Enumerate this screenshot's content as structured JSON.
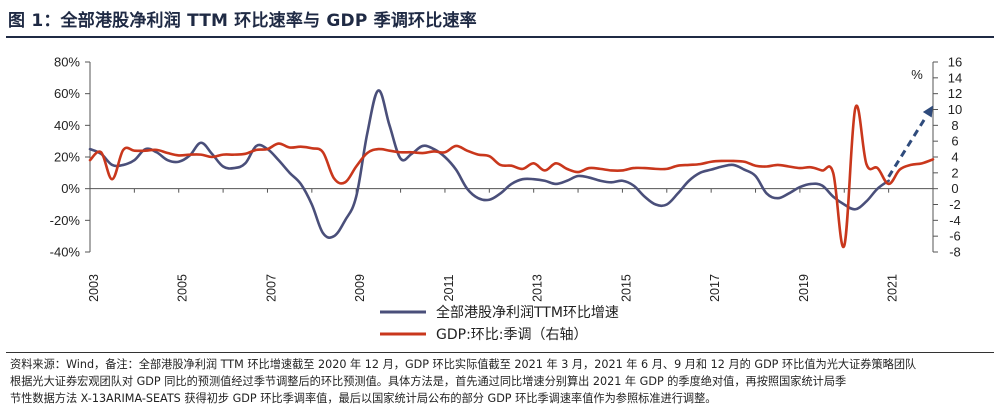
{
  "header": {
    "title": "图 1：全部港股净利润 TTM 环比速率与 GDP 季调环比速率"
  },
  "source": {
    "line1": "资料来源：Wind，备注：全部港股净利润 TTM 环比增速截至 2020 年 12 月，GDP 环比实际值截至 2021 年 3 月，2021 年 6 月、9 月和 12 月的 GDP 环比值为光大证券策略团队",
    "line2": "根据光大证券宏观团队对 GDP 同比的预测值经过季节调整后的环比预测值。具体方法是，首先通过同比增速分别算出 2021 年 GDP 的季度绝对值，再按照国家统计局季",
    "line3": "节性数据方法 X-13ARIMA-SEATS 获得初步 GDP 环比季调率值，最后以国家统计局公布的部分 GDP 环比季调速率值作为参照标准进行调整。"
  },
  "colors": {
    "profit": "#4a4f7a",
    "gdp": "#c9371c",
    "forecast": "#2f4b7c"
  },
  "chart_data": {
    "type": "line",
    "title": "图 1：全部港股净利润 TTM 环比速率与 GDP 季调环比速率",
    "x_range": [
      2003.0,
      2022.0
    ],
    "x_ticks": [
      "2003",
      "2005",
      "2007",
      "2009",
      "2011",
      "2013",
      "2015",
      "2017",
      "2019",
      "2021"
    ],
    "y_left": {
      "min": -40,
      "max": 80,
      "ticks": [
        "80%",
        "60%",
        "40%",
        "20%",
        "0%",
        "-20%",
        "-40%"
      ]
    },
    "y_right": {
      "min": -8,
      "max": 16,
      "unit": "%",
      "ticks": [
        "16",
        "14",
        "12",
        "10",
        "8",
        "6",
        "4",
        "2",
        "0",
        "-2",
        "-4",
        "-6",
        "-8"
      ]
    },
    "series": [
      {
        "name": "全部港股净利润TTM环比增速",
        "axis": "left",
        "x": [
          2003.0,
          2003.25,
          2003.5,
          2003.75,
          2004.0,
          2004.25,
          2004.5,
          2004.75,
          2005.0,
          2005.25,
          2005.5,
          2005.75,
          2006.0,
          2006.25,
          2006.5,
          2006.75,
          2007.0,
          2007.25,
          2007.5,
          2007.75,
          2008.0,
          2008.25,
          2008.5,
          2008.75,
          2009.0,
          2009.25,
          2009.5,
          2009.75,
          2010.0,
          2010.25,
          2010.5,
          2010.75,
          2011.0,
          2011.25,
          2011.5,
          2011.75,
          2012.0,
          2012.25,
          2012.5,
          2012.75,
          2013.0,
          2013.25,
          2013.5,
          2013.75,
          2014.0,
          2014.25,
          2014.5,
          2014.75,
          2015.0,
          2015.25,
          2015.5,
          2015.75,
          2016.0,
          2016.25,
          2016.5,
          2016.75,
          2017.0,
          2017.25,
          2017.5,
          2017.75,
          2018.0,
          2018.25,
          2018.5,
          2018.75,
          2019.0,
          2019.25,
          2019.5,
          2019.75,
          2020.0,
          2020.25,
          2020.5,
          2020.75,
          2021.0
        ],
        "values": [
          25,
          22,
          15,
          15,
          18,
          25,
          23,
          18,
          17,
          21,
          29,
          22,
          14,
          13,
          16,
          27,
          25,
          18,
          10,
          3,
          -10,
          -28,
          -30,
          -20,
          -5,
          35,
          62,
          40,
          19,
          22,
          27,
          25,
          20,
          12,
          0,
          -6,
          -7,
          -3,
          3,
          6,
          6,
          5,
          3,
          5,
          8,
          7,
          5,
          4,
          5,
          2,
          -5,
          -10,
          -10,
          -3,
          5,
          10,
          12,
          14,
          15,
          12,
          8,
          -3,
          -6,
          -3,
          1,
          3,
          2,
          -5,
          -10,
          -13,
          -8,
          0,
          5
        ]
      },
      {
        "name": "GDP:环比:季调（右轴）",
        "axis": "right",
        "x": [
          2003.0,
          2003.25,
          2003.5,
          2003.75,
          2004.0,
          2004.25,
          2004.5,
          2004.75,
          2005.0,
          2005.25,
          2005.5,
          2005.75,
          2006.0,
          2006.25,
          2006.5,
          2006.75,
          2007.0,
          2007.25,
          2007.5,
          2007.75,
          2008.0,
          2008.25,
          2008.5,
          2008.75,
          2009.0,
          2009.25,
          2009.5,
          2009.75,
          2010.0,
          2010.25,
          2010.5,
          2010.75,
          2011.0,
          2011.25,
          2011.5,
          2011.75,
          2012.0,
          2012.25,
          2012.5,
          2012.75,
          2013.0,
          2013.25,
          2013.5,
          2013.75,
          2014.0,
          2014.25,
          2014.5,
          2014.75,
          2015.0,
          2015.25,
          2015.5,
          2015.75,
          2016.0,
          2016.25,
          2016.5,
          2016.75,
          2017.0,
          2017.25,
          2017.5,
          2017.75,
          2018.0,
          2018.25,
          2018.5,
          2018.75,
          2019.0,
          2019.25,
          2019.5,
          2019.75,
          2020.0,
          2020.25,
          2020.5,
          2020.75,
          2021.0,
          2021.25,
          2021.5,
          2021.75,
          2022.0
        ],
        "values": [
          3.6,
          4.6,
          1.2,
          4.9,
          4.8,
          4.8,
          4.9,
          4.5,
          4.2,
          4.3,
          4.3,
          4.0,
          4.3,
          4.3,
          4.4,
          4.9,
          5.0,
          5.7,
          5.2,
          5.3,
          5.1,
          4.6,
          1.3,
          0.8,
          2.8,
          4.5,
          5.0,
          4.8,
          4.6,
          4.6,
          4.5,
          4.7,
          4.6,
          5.4,
          4.8,
          4.3,
          4.1,
          3.0,
          2.9,
          2.5,
          3.2,
          2.3,
          3.2,
          2.5,
          2.1,
          2.6,
          2.5,
          2.3,
          2.3,
          2.6,
          2.6,
          2.5,
          2.5,
          2.9,
          3.0,
          3.1,
          3.4,
          3.5,
          3.5,
          3.4,
          2.9,
          2.8,
          3.0,
          2.8,
          2.6,
          2.7,
          2.3,
          2.0,
          -7.2,
          10.2,
          3.1,
          2.6,
          0.6,
          2.4,
          3.0,
          3.2,
          3.7
        ]
      }
    ],
    "forecast_arrow": {
      "from": [
        2021.0,
        1.5
      ],
      "to": [
        2022.0,
        10.5
      ],
      "axis": "right"
    },
    "legend": {
      "placement": "bottom-center",
      "entries": [
        "全部港股净利润TTM环比增速",
        "GDP:环比:季调（右轴）"
      ]
    },
    "grid": false
  }
}
